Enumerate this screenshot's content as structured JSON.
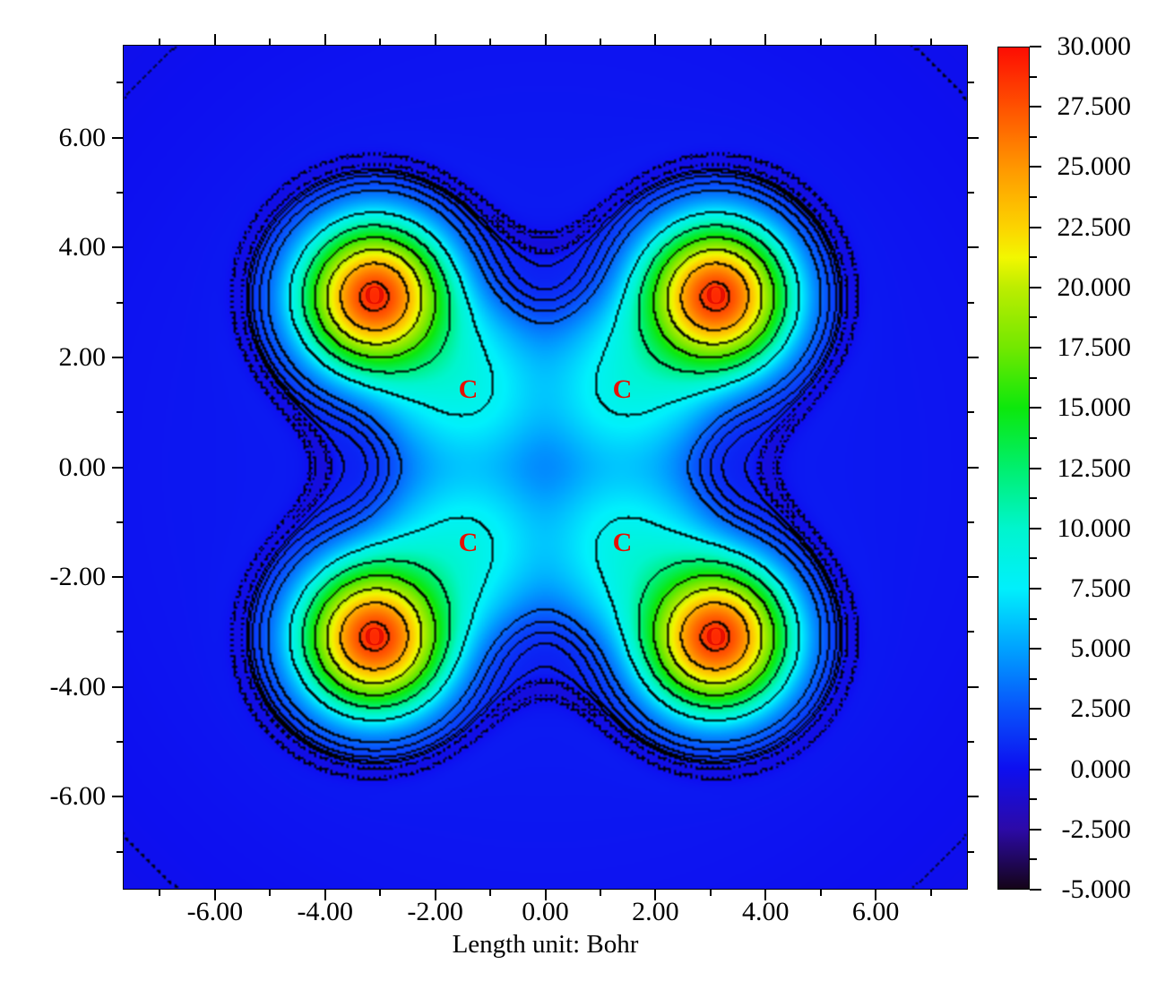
{
  "chart_data": {
    "type": "filled_contour_map",
    "xlabel": "Length unit: Bohr",
    "x_range": [
      -7.67,
      7.67
    ],
    "y_range": [
      -7.67,
      7.67
    ],
    "x_major_ticks": [
      {
        "value": -6,
        "label": "-6.00"
      },
      {
        "value": -4,
        "label": "-4.00"
      },
      {
        "value": -2,
        "label": "-2.00"
      },
      {
        "value": 0,
        "label": "0.00"
      },
      {
        "value": 2,
        "label": "2.00"
      },
      {
        "value": 4,
        "label": "4.00"
      },
      {
        "value": 6,
        "label": "6.00"
      }
    ],
    "x_minor_ticks": [
      -7,
      -5,
      -3,
      -1,
      1,
      3,
      5,
      7
    ],
    "y_major_ticks": [
      {
        "value": 6,
        "label": "6.00"
      },
      {
        "value": 4,
        "label": "4.00"
      },
      {
        "value": 2,
        "label": "2.00"
      },
      {
        "value": 0,
        "label": "0.00"
      },
      {
        "value": -2,
        "label": "-2.00"
      },
      {
        "value": -4,
        "label": "-4.00"
      },
      {
        "value": -6,
        "label": "-6.00"
      }
    ],
    "y_minor_ticks": [
      -7,
      -5,
      -3,
      -1,
      1,
      3,
      5,
      7
    ],
    "colorbar": {
      "min": -5.0,
      "max": 30.0,
      "major_ticks": [
        {
          "value": 30,
          "label": "30.000"
        },
        {
          "value": 27.5,
          "label": "27.500"
        },
        {
          "value": 25,
          "label": "25.000"
        },
        {
          "value": 22.5,
          "label": "22.500"
        },
        {
          "value": 20,
          "label": "20.000"
        },
        {
          "value": 17.5,
          "label": "17.500"
        },
        {
          "value": 15,
          "label": "15.000"
        },
        {
          "value": 12.5,
          "label": "12.500"
        },
        {
          "value": 10,
          "label": "10.000"
        },
        {
          "value": 7.5,
          "label": "7.500"
        },
        {
          "value": 5,
          "label": "5.000"
        },
        {
          "value": 2.5,
          "label": "2.500"
        },
        {
          "value": 0,
          "label": "0.000"
        },
        {
          "value": -2.5,
          "label": "-2.500"
        },
        {
          "value": -5,
          "label": "-5.000"
        }
      ],
      "minor_ticks": [
        28.75,
        26.25,
        23.75,
        21.25,
        18.75,
        16.25,
        13.75,
        11.25,
        8.75,
        6.25,
        3.75,
        1.25,
        -1.25,
        -3.75
      ],
      "colormap": [
        {
          "v": -5,
          "c": "#150418"
        },
        {
          "v": -2.5,
          "c": "#2c0aa8"
        },
        {
          "v": 0,
          "c": "#0d0ff0"
        },
        {
          "v": 2.5,
          "c": "#0853fb"
        },
        {
          "v": 5,
          "c": "#00a2ff"
        },
        {
          "v": 7.5,
          "c": "#00f0fc"
        },
        {
          "v": 10,
          "c": "#00f5cd"
        },
        {
          "v": 12.5,
          "c": "#00ef6e"
        },
        {
          "v": 15,
          "c": "#0ce80c"
        },
        {
          "v": 17.5,
          "c": "#72e800"
        },
        {
          "v": 20,
          "c": "#bced00"
        },
        {
          "v": 21.25,
          "c": "#f2f700"
        },
        {
          "v": 22.5,
          "c": "#fcd400"
        },
        {
          "v": 25,
          "c": "#ff9700"
        },
        {
          "v": 27.5,
          "c": "#ff5200"
        },
        {
          "v": 30,
          "c": "#fd0d03"
        }
      ]
    },
    "contour_levels": {
      "solid": [
        0.6,
        1.0,
        1.5,
        2.2,
        3.2,
        8,
        12,
        16,
        20,
        24,
        28
      ],
      "dashed": [
        -0.08,
        -0.2,
        -0.45
      ],
      "color": "#000000"
    },
    "atoms": {
      "label_color": "#e60f00",
      "items": [
        {
          "element": "O",
          "x": -3.1,
          "y": 3.1
        },
        {
          "element": "O",
          "x": 3.1,
          "y": 3.1
        },
        {
          "element": "O",
          "x": -3.1,
          "y": -3.1
        },
        {
          "element": "O",
          "x": 3.1,
          "y": -3.1
        },
        {
          "element": "C",
          "x": -1.4,
          "y": 1.4
        },
        {
          "element": "C",
          "x": 1.4,
          "y": 1.4
        },
        {
          "element": "C",
          "x": -1.4,
          "y": -1.4
        },
        {
          "element": "C",
          "x": 1.4,
          "y": -1.4
        }
      ]
    },
    "field_model": {
      "o_peak": {
        "amp": 23.0,
        "w": 1.6
      },
      "c_peak": {
        "amp": 2.2,
        "w": 1.2
      },
      "envelope": {
        "amp": 6.0,
        "w": 1.6,
        "k": 0.09
      },
      "moat": {
        "amp": 1.2,
        "w": 2.6,
        "center": 0.1,
        "sigma": 0.035
      },
      "background": {
        "base": 0.52,
        "curv": 0.0058
      }
    }
  }
}
